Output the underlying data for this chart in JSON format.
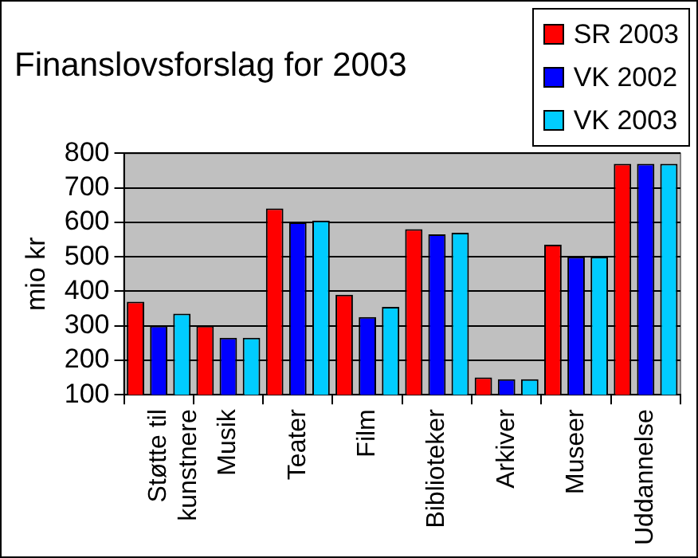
{
  "chart_data": {
    "type": "bar",
    "title": "Finanslovsforslag for 2003",
    "ylabel": "mio kr",
    "categories": [
      "Støtte til kunstnere",
      "Musik",
      "Teater",
      "Film",
      "Biblioteker",
      "Arkiver",
      "Museer",
      "Uddannelse"
    ],
    "series": [
      {
        "name": "SR 2003",
        "color": "#ff0000",
        "values": [
          370,
          300,
          640,
          390,
          580,
          150,
          535,
          770
        ]
      },
      {
        "name": "VK 2002",
        "color": "#0000ff",
        "values": [
          300,
          265,
          600,
          325,
          565,
          145,
          500,
          770
        ]
      },
      {
        "name": "VK 2003",
        "color": "#00ccff",
        "values": [
          335,
          265,
          605,
          355,
          570,
          145,
          500,
          770
        ]
      }
    ],
    "ylim": [
      100,
      800
    ],
    "yticks": [
      100,
      200,
      300,
      400,
      500,
      600,
      700,
      800
    ],
    "grid": "y",
    "legend": "top right"
  }
}
